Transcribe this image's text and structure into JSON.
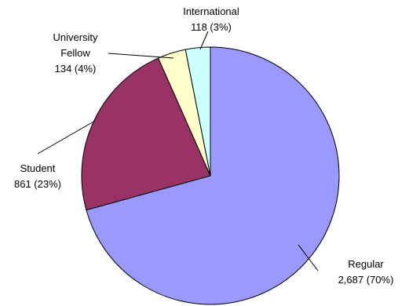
{
  "chart_data": {
    "type": "pie",
    "title": "",
    "start": "12 o'clock",
    "direction": "clockwise",
    "slices": [
      {
        "name": "Regular",
        "value": 2687,
        "label_value": "2,687 (70%)",
        "color": "#9999ff"
      },
      {
        "name": "Student",
        "value": 861,
        "label_value": "861 (23%)",
        "color": "#993366"
      },
      {
        "name_lines": [
          "University",
          "Fellow"
        ],
        "value": 134,
        "label_value": "134 (4%)",
        "color": "#ffffcc"
      },
      {
        "name": "International",
        "value": 118,
        "label_value": "118 (3%)",
        "color": "#ccffff"
      }
    ]
  }
}
